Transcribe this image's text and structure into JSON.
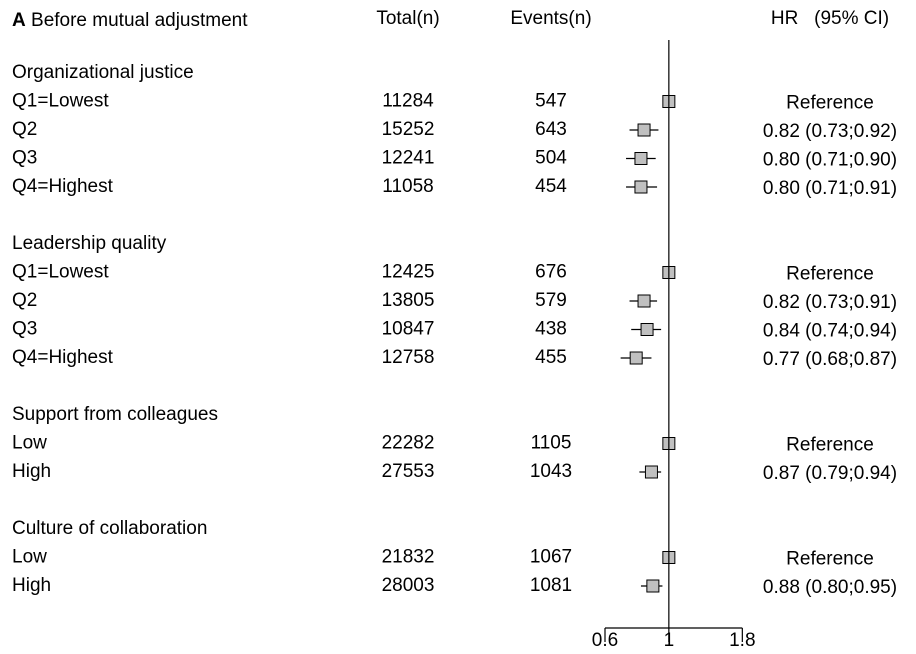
{
  "chart_data": {
    "type": "forest",
    "panel_label": "A",
    "title": "Before mutual adjustment",
    "column_headers": [
      "Total(n)",
      "Events(n)",
      "HR   (95% CI)"
    ],
    "log_scale": true,
    "xlim": [
      0.6,
      1.8
    ],
    "xticks": [
      0.6,
      1,
      1.8
    ],
    "marker_color": "#c0c0c0",
    "groups": [
      {
        "name": "Organizational justice",
        "categories": [
          "Q1=Lowest",
          "Q2",
          "Q3",
          "Q4=Highest"
        ],
        "totals": [
          11284,
          15252,
          12241,
          11058
        ],
        "events": [
          547,
          643,
          504,
          454
        ],
        "values": [
          1,
          0.82,
          0.8,
          0.8
        ],
        "ci_low": [
          null,
          0.73,
          0.71,
          0.71
        ],
        "ci_high": [
          null,
          0.92,
          0.9,
          0.91
        ],
        "value_labels": [
          "Reference",
          "0.82 (0.73;0.92)",
          "0.80 (0.71;0.90)",
          "0.80 (0.71;0.91)"
        ]
      },
      {
        "name": "Leadership quality",
        "categories": [
          "Q1=Lowest",
          "Q2",
          "Q3",
          "Q4=Highest"
        ],
        "totals": [
          12425,
          13805,
          10847,
          12758
        ],
        "events": [
          676,
          579,
          438,
          455
        ],
        "values": [
          1,
          0.82,
          0.84,
          0.77
        ],
        "ci_low": [
          null,
          0.73,
          0.74,
          0.68
        ],
        "ci_high": [
          null,
          0.91,
          0.94,
          0.87
        ],
        "value_labels": [
          "Reference",
          "0.82 (0.73;0.91)",
          "0.84 (0.74;0.94)",
          "0.77 (0.68;0.87)"
        ]
      },
      {
        "name": "Support from colleagues",
        "categories": [
          "Low",
          "High"
        ],
        "totals": [
          22282,
          27553
        ],
        "events": [
          1105,
          1043
        ],
        "values": [
          1,
          0.87
        ],
        "ci_low": [
          null,
          0.79
        ],
        "ci_high": [
          null,
          0.94
        ],
        "value_labels": [
          "Reference",
          "0.87 (0.79;0.94)"
        ]
      },
      {
        "name": "Culture of collaboration",
        "categories": [
          "Low",
          "High"
        ],
        "totals": [
          21832,
          28003
        ],
        "events": [
          1067,
          1081
        ],
        "values": [
          1,
          0.88
        ],
        "ci_low": [
          null,
          0.8
        ],
        "ci_high": [
          null,
          0.95
        ],
        "value_labels": [
          "Reference",
          "0.88 (0.80;0.95)"
        ]
      }
    ]
  }
}
